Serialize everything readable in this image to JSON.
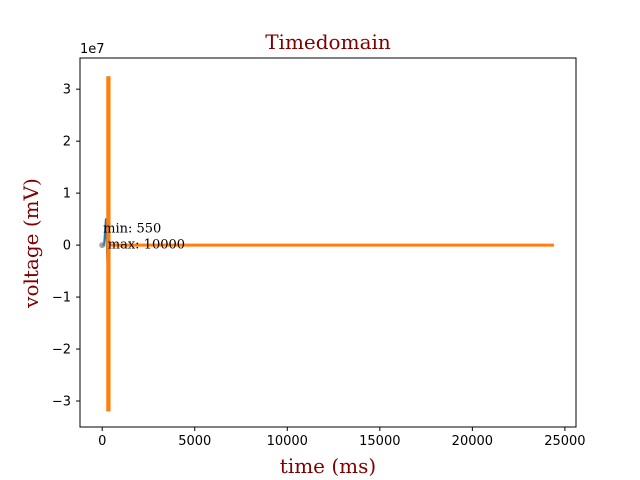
{
  "chart_data": {
    "type": "line",
    "title": "Timedomain",
    "xlabel": "time (ms)",
    "ylabel": "voltage (mV)",
    "y_offset_text": "1e7",
    "xlim": [
      -1200,
      25600
    ],
    "ylim": [
      -3.5,
      3.6
    ],
    "y_scale_factor": 10000000,
    "grid": false,
    "x_ticks": [
      0,
      5000,
      10000,
      15000,
      20000,
      25000
    ],
    "x_tick_labels": [
      "0",
      "5000",
      "10000",
      "15000",
      "20000",
      "25000"
    ],
    "y_ticks": [
      -3,
      -2,
      -1,
      0,
      1,
      2,
      3
    ],
    "y_tick_labels": [
      "−3",
      "−2",
      "−1",
      "0",
      "1",
      "2",
      "3"
    ],
    "annotations": [
      {
        "text": "min: 550",
        "x": 50,
        "y": 0.32
      },
      {
        "text": "max: 10000",
        "x": 300,
        "y": 0.01
      }
    ],
    "series": [
      {
        "color": "#1f77b4",
        "x": [
          0,
          100,
          200,
          300,
          350,
          400,
          1000,
          5000,
          10000,
          15000,
          20000,
          24400
        ],
        "values": [
          0,
          0,
          0.5,
          -0.5,
          0.3,
          0,
          0,
          0,
          0,
          0,
          0,
          0
        ]
      },
      {
        "color": "#ff7f0e",
        "burst_x": [
          220,
          450
        ],
        "burst_ylim": [
          -3.2,
          3.25
        ],
        "x": [
          450,
          2000,
          5000,
          10000,
          15000,
          20000,
          24400
        ],
        "values": [
          0,
          0,
          0,
          0,
          0,
          0,
          0
        ]
      }
    ]
  }
}
